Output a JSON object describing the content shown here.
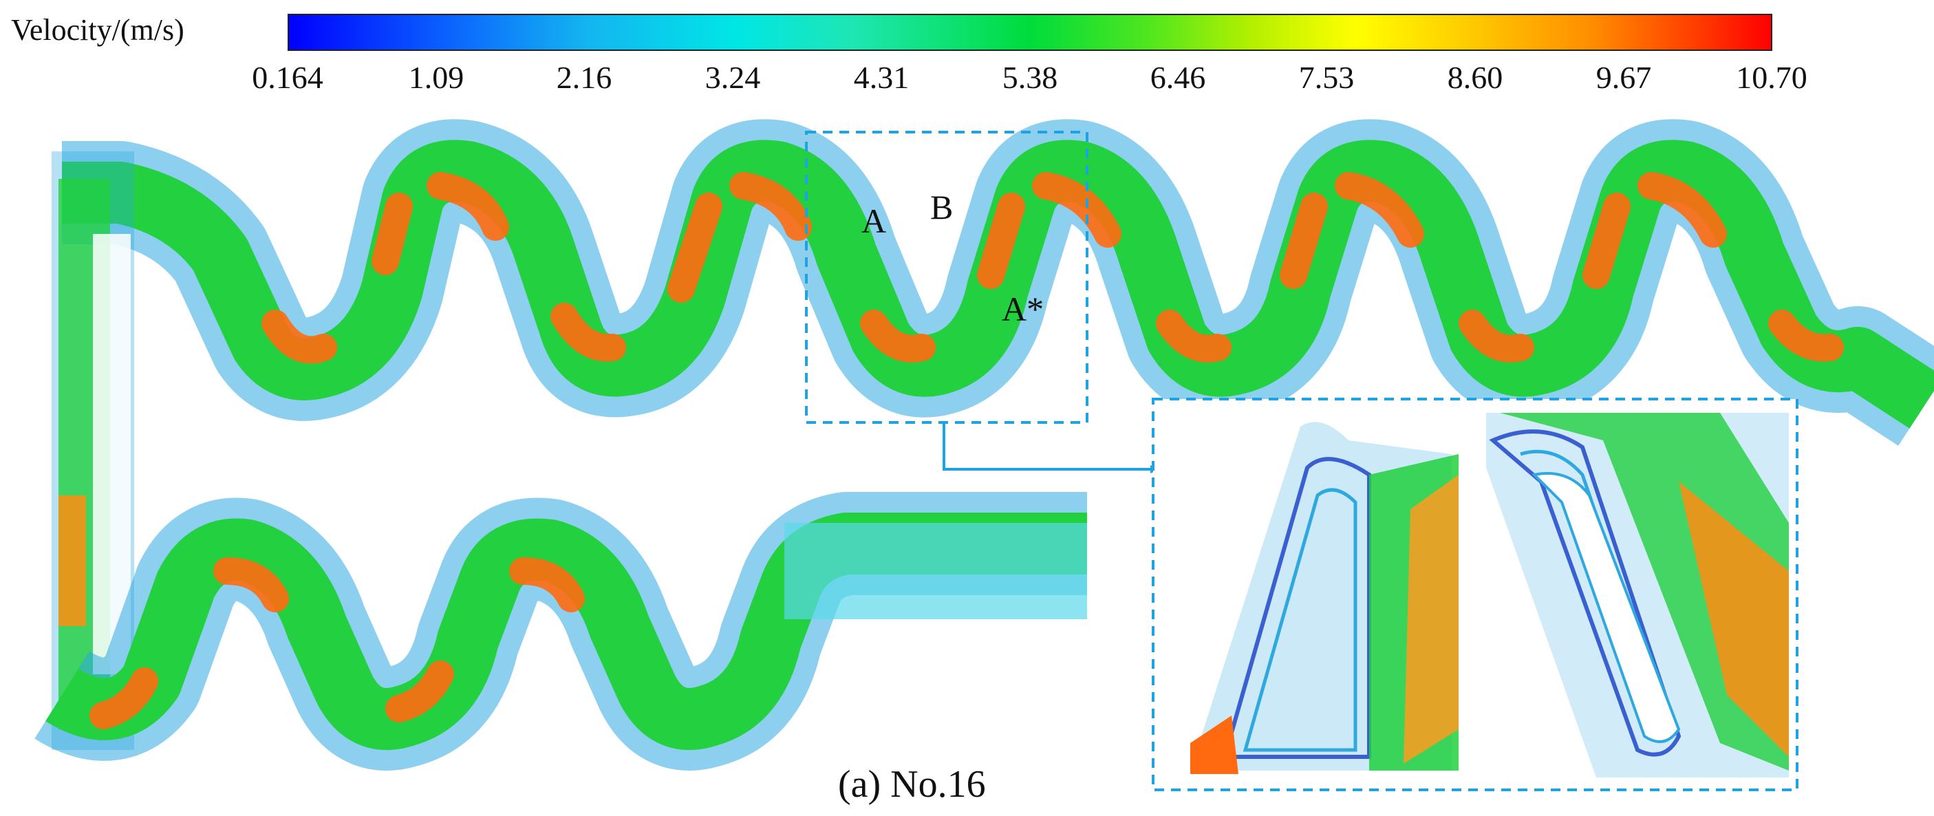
{
  "legend": {
    "title": "Velocity/(m/s)",
    "ticks": [
      "0.164",
      "1.09",
      "2.16",
      "3.24",
      "4.31",
      "5.38",
      "6.46",
      "7.53",
      "8.60",
      "9.67",
      "10.70"
    ]
  },
  "labels": {
    "a": "A",
    "b": "B",
    "a_star": "A*"
  },
  "caption": "(a) No.16",
  "colors": {
    "wall_vectors": "#2fa8e0",
    "slow_vectors": "#3a5fd0",
    "core_green": "#22d040",
    "high_orange": "#ff6a10",
    "box_dash": "#1fa2e0"
  }
}
